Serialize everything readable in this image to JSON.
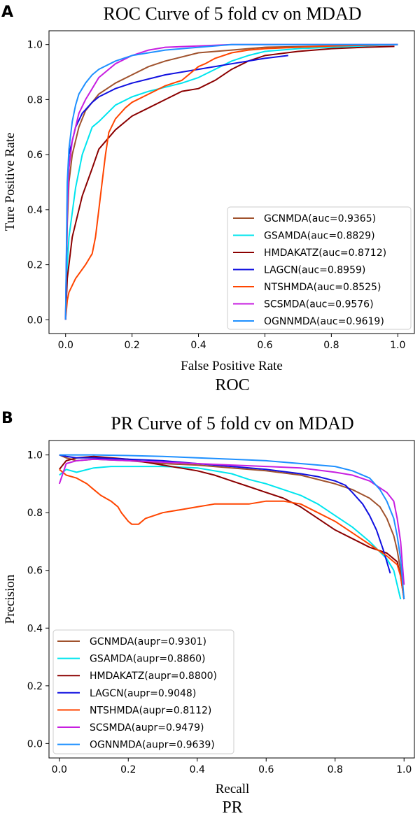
{
  "chart_data": [
    {
      "type": "line",
      "panel_label": "A",
      "title": "ROC Curve of 5 fold cv on MDAD",
      "xlabel": "False Positive Rate",
      "ylabel": "Ture Positive Rate",
      "caption": "ROC",
      "xlim": [
        -0.05,
        1.05
      ],
      "ylim": [
        -0.05,
        1.05
      ],
      "xticks": [
        0.0,
        0.2,
        0.4,
        0.6,
        0.8,
        1.0
      ],
      "yticks": [
        0.0,
        0.2,
        0.4,
        0.6,
        0.8,
        1.0
      ],
      "tick_labels_x": [
        "0.0",
        "0.2",
        "0.4",
        "0.6",
        "0.8",
        "1.0"
      ],
      "tick_labels_y": [
        "0.0",
        "0.2",
        "0.4",
        "0.6",
        "0.8",
        "1.0"
      ],
      "legend_position": "lower-right",
      "series": [
        {
          "name": "GCNMDA(auc=0.9365)",
          "color": "#a0522d",
          "x": [
            0,
            0.005,
            0.01,
            0.02,
            0.04,
            0.06,
            0.1,
            0.15,
            0.2,
            0.25,
            0.3,
            0.4,
            0.5,
            0.6,
            0.8,
            1.0
          ],
          "y": [
            0,
            0.35,
            0.5,
            0.6,
            0.7,
            0.76,
            0.82,
            0.86,
            0.89,
            0.92,
            0.94,
            0.97,
            0.98,
            0.99,
            0.995,
            1.0
          ]
        },
        {
          "name": "GSAMDA(auc=0.8829)",
          "color": "#00e5ee",
          "x": [
            0,
            0.005,
            0.01,
            0.03,
            0.05,
            0.08,
            0.1,
            0.15,
            0.2,
            0.25,
            0.3,
            0.35,
            0.4,
            0.45,
            0.5,
            0.55,
            0.6,
            0.7,
            0.8,
            1.0
          ],
          "y": [
            0,
            0.2,
            0.3,
            0.48,
            0.6,
            0.7,
            0.72,
            0.78,
            0.81,
            0.83,
            0.845,
            0.86,
            0.88,
            0.91,
            0.94,
            0.96,
            0.975,
            0.985,
            0.99,
            1.0
          ]
        },
        {
          "name": "HMDAKATZ(auc=0.8712)",
          "color": "#8b0000",
          "x": [
            0,
            0.005,
            0.02,
            0.05,
            0.08,
            0.1,
            0.15,
            0.2,
            0.25,
            0.3,
            0.35,
            0.4,
            0.45,
            0.5,
            0.55,
            0.6,
            0.7,
            0.8,
            0.9,
            0.99
          ],
          "y": [
            0,
            0.15,
            0.3,
            0.45,
            0.55,
            0.62,
            0.69,
            0.74,
            0.77,
            0.8,
            0.83,
            0.84,
            0.87,
            0.91,
            0.94,
            0.96,
            0.975,
            0.985,
            0.99,
            0.993
          ]
        },
        {
          "name": "LAGCN(auc=0.8959)",
          "color": "#1010e0",
          "x": [
            0,
            0.005,
            0.01,
            0.03,
            0.05,
            0.08,
            0.1,
            0.15,
            0.2,
            0.3,
            0.4,
            0.5,
            0.6,
            0.67
          ],
          "y": [
            0,
            0.45,
            0.6,
            0.7,
            0.75,
            0.79,
            0.81,
            0.84,
            0.86,
            0.89,
            0.91,
            0.93,
            0.95,
            0.96
          ]
        },
        {
          "name": "NTSHMDA(auc=0.8525)",
          "color": "#ff4500",
          "x": [
            0,
            0.005,
            0.01,
            0.03,
            0.06,
            0.08,
            0.09,
            0.1,
            0.11,
            0.12,
            0.13,
            0.15,
            0.18,
            0.2,
            0.25,
            0.3,
            0.35,
            0.38,
            0.4,
            0.42,
            0.45,
            0.5,
            0.55,
            0.6,
            0.7,
            0.8,
            1.0
          ],
          "y": [
            0,
            0.07,
            0.1,
            0.15,
            0.2,
            0.24,
            0.3,
            0.4,
            0.5,
            0.6,
            0.68,
            0.73,
            0.77,
            0.79,
            0.82,
            0.85,
            0.87,
            0.9,
            0.92,
            0.93,
            0.95,
            0.97,
            0.98,
            0.985,
            0.99,
            0.995,
            1.0
          ]
        },
        {
          "name": "SCSMDA(auc=0.9576)",
          "color": "#c71ee0",
          "x": [
            0,
            0.005,
            0.01,
            0.02,
            0.04,
            0.06,
            0.08,
            0.1,
            0.15,
            0.2,
            0.25,
            0.3,
            0.4,
            0.5,
            0.7,
            1.0
          ],
          "y": [
            0,
            0.4,
            0.55,
            0.65,
            0.75,
            0.8,
            0.84,
            0.88,
            0.93,
            0.96,
            0.98,
            0.99,
            0.995,
            1.0,
            1.0,
            1.0
          ]
        },
        {
          "name": "OGNNMDA(auc=0.9619)",
          "color": "#1e90ff",
          "x": [
            0,
            0.005,
            0.01,
            0.02,
            0.03,
            0.04,
            0.06,
            0.08,
            0.1,
            0.15,
            0.2,
            0.3,
            0.4,
            0.5,
            0.7,
            1.0
          ],
          "y": [
            0,
            0.5,
            0.62,
            0.72,
            0.78,
            0.82,
            0.86,
            0.89,
            0.91,
            0.94,
            0.96,
            0.98,
            0.99,
            1.0,
            1.0,
            1.0
          ]
        }
      ]
    },
    {
      "type": "line",
      "panel_label": "B",
      "title": "PR Curve of 5 fold cv on MDAD",
      "xlabel": "Recall",
      "ylabel": "Precision",
      "caption": "PR",
      "xlim": [
        -0.03,
        1.03
      ],
      "ylim": [
        -0.05,
        1.05
      ],
      "xticks": [
        0.0,
        0.2,
        0.4,
        0.6,
        0.8,
        1.0
      ],
      "yticks": [
        0.0,
        0.2,
        0.4,
        0.6,
        0.8,
        1.0
      ],
      "tick_labels_x": [
        "0.0",
        "0.2",
        "0.4",
        "0.6",
        "0.8",
        "1.0"
      ],
      "tick_labels_y": [
        "0.0",
        "0.2",
        "0.4",
        "0.6",
        "0.8",
        "1.0"
      ],
      "legend_position": "lower-left",
      "series": [
        {
          "name": "GCNMDA(aupr=0.9301)",
          "color": "#a0522d",
          "x": [
            0,
            0.02,
            0.05,
            0.1,
            0.2,
            0.3,
            0.4,
            0.5,
            0.6,
            0.7,
            0.8,
            0.85,
            0.9,
            0.93,
            0.95,
            0.97,
            0.98,
            0.99,
            1.0
          ],
          "y": [
            1.0,
            0.99,
            0.98,
            0.985,
            0.98,
            0.97,
            0.965,
            0.955,
            0.945,
            0.93,
            0.9,
            0.88,
            0.85,
            0.82,
            0.78,
            0.72,
            0.67,
            0.6,
            0.5
          ]
        },
        {
          "name": "GSAMDA(aupr=0.8860)",
          "color": "#00e5ee",
          "x": [
            0,
            0.02,
            0.05,
            0.1,
            0.15,
            0.2,
            0.3,
            0.4,
            0.5,
            0.55,
            0.6,
            0.65,
            0.7,
            0.75,
            0.8,
            0.85,
            0.9,
            0.95,
            0.97,
            0.98,
            0.99
          ],
          "y": [
            0.93,
            0.95,
            0.94,
            0.955,
            0.96,
            0.96,
            0.96,
            0.955,
            0.935,
            0.915,
            0.9,
            0.88,
            0.86,
            0.83,
            0.79,
            0.75,
            0.7,
            0.64,
            0.6,
            0.55,
            0.5
          ]
        },
        {
          "name": "HMDAKATZ(aupr=0.8800)",
          "color": "#8b0000",
          "x": [
            0,
            0.02,
            0.05,
            0.1,
            0.15,
            0.2,
            0.25,
            0.3,
            0.35,
            0.4,
            0.45,
            0.5,
            0.55,
            0.6,
            0.65,
            0.7,
            0.75,
            0.8,
            0.85,
            0.9,
            0.95,
            0.98,
            0.99,
            1.0
          ],
          "y": [
            0.95,
            0.98,
            0.99,
            0.995,
            0.99,
            0.985,
            0.975,
            0.965,
            0.955,
            0.945,
            0.93,
            0.91,
            0.89,
            0.87,
            0.85,
            0.82,
            0.78,
            0.74,
            0.71,
            0.68,
            0.66,
            0.63,
            0.58,
            0.5
          ]
        },
        {
          "name": "LAGCN(aupr=0.9048)",
          "color": "#1010e0",
          "x": [
            0,
            0.02,
            0.05,
            0.1,
            0.2,
            0.3,
            0.4,
            0.5,
            0.6,
            0.7,
            0.75,
            0.8,
            0.83,
            0.85,
            0.88,
            0.9,
            0.92,
            0.94,
            0.95,
            0.96
          ],
          "y": [
            1.0,
            0.995,
            0.99,
            0.99,
            0.985,
            0.98,
            0.97,
            0.96,
            0.95,
            0.935,
            0.925,
            0.91,
            0.895,
            0.87,
            0.83,
            0.79,
            0.74,
            0.67,
            0.63,
            0.59
          ]
        },
        {
          "name": "NTSHMDA(aupr=0.8112)",
          "color": "#ff4500",
          "x": [
            0,
            0.02,
            0.05,
            0.08,
            0.1,
            0.12,
            0.15,
            0.17,
            0.18,
            0.2,
            0.21,
            0.23,
            0.25,
            0.3,
            0.35,
            0.4,
            0.45,
            0.5,
            0.55,
            0.6,
            0.65,
            0.7,
            0.75,
            0.8,
            0.85,
            0.9,
            0.95,
            0.98,
            0.99,
            1.0
          ],
          "y": [
            0.95,
            0.93,
            0.92,
            0.9,
            0.88,
            0.86,
            0.84,
            0.82,
            0.8,
            0.77,
            0.76,
            0.76,
            0.78,
            0.8,
            0.81,
            0.82,
            0.83,
            0.83,
            0.83,
            0.84,
            0.84,
            0.83,
            0.8,
            0.77,
            0.73,
            0.69,
            0.65,
            0.62,
            0.58,
            0.5
          ]
        },
        {
          "name": "SCSMDA(aupr=0.9479)",
          "color": "#c71ee0",
          "x": [
            0,
            0.02,
            0.05,
            0.1,
            0.2,
            0.3,
            0.4,
            0.5,
            0.6,
            0.7,
            0.8,
            0.85,
            0.9,
            0.95,
            0.97,
            0.98,
            0.99,
            1.0
          ],
          "y": [
            0.9,
            0.97,
            0.98,
            0.985,
            0.98,
            0.975,
            0.97,
            0.965,
            0.96,
            0.955,
            0.94,
            0.93,
            0.91,
            0.87,
            0.84,
            0.78,
            0.7,
            0.55
          ]
        },
        {
          "name": "OGNNMDA(aupr=0.9639)",
          "color": "#1e90ff",
          "x": [
            0,
            0.05,
            0.1,
            0.2,
            0.3,
            0.4,
            0.5,
            0.6,
            0.7,
            0.8,
            0.85,
            0.9,
            0.93,
            0.95,
            0.97,
            0.98,
            0.99,
            1.0
          ],
          "y": [
            1.0,
            1.0,
            1.0,
            0.998,
            0.995,
            0.99,
            0.985,
            0.98,
            0.97,
            0.96,
            0.945,
            0.92,
            0.88,
            0.84,
            0.78,
            0.72,
            0.64,
            0.5
          ]
        }
      ]
    }
  ]
}
